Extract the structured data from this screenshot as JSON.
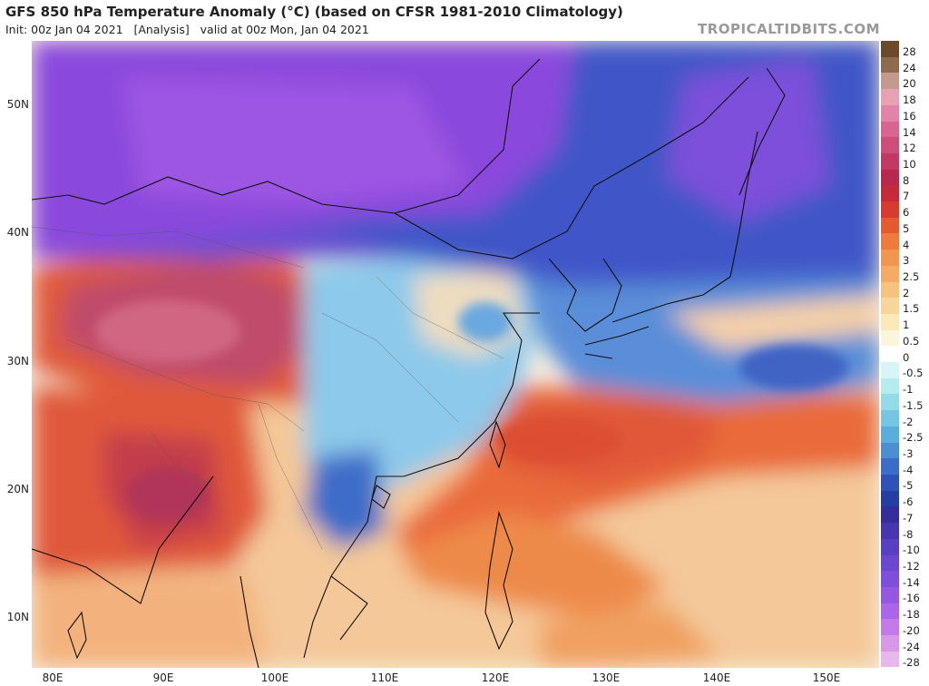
{
  "header": {
    "title": "GFS 850 hPa Temperature Anomaly (°C) (based on CFSR 1981-2010 Climatology)",
    "subtitle": "Init: 00z Jan 04 2021   [Analysis]   valid at 00z Mon, Jan 04 2021",
    "brand": "TROPICALTIDBITS.COM"
  },
  "map": {
    "lat_labels": [
      "50N",
      "40N",
      "30N",
      "20N",
      "10N"
    ],
    "lon_labels": [
      "80E",
      "90E",
      "100E",
      "110E",
      "120E",
      "130E",
      "140E",
      "150E"
    ],
    "colors": {
      "very_cold": "#7f45d8",
      "cold": "#4a5fd0",
      "cool": "#79b8e6",
      "neutral": "#f6f2ea",
      "warm": "#f3b27d",
      "hot": "#e05838",
      "very_hot": "#b83a5c",
      "coastline": "#111111"
    }
  },
  "colorbar": {
    "labels": [
      "28",
      "24",
      "20",
      "18",
      "16",
      "14",
      "12",
      "10",
      "8",
      "7",
      "6",
      "5",
      "4",
      "3",
      "2.5",
      "2",
      "1.5",
      "1",
      "0.5",
      "0",
      "-0.5",
      "-1",
      "-1.5",
      "-2",
      "-2.5",
      "-3",
      "-4",
      "-5",
      "-6",
      "-7",
      "-8",
      "-10",
      "-12",
      "-14",
      "-16",
      "-18",
      "-20",
      "-24",
      "-28"
    ],
    "colors": [
      "#6b4a2b",
      "#8e6b4d",
      "#c59a8e",
      "#e8a0b3",
      "#e283a9",
      "#d7658f",
      "#cc4e79",
      "#c23a62",
      "#b8274d",
      "#c52a3b",
      "#d93a30",
      "#e65a2f",
      "#ee7a3b",
      "#f29550",
      "#f5ab65",
      "#f7c17f",
      "#f8d69b",
      "#faeab9",
      "#fbf5dc",
      "#ffffff",
      "#d7f5f6",
      "#b5ecf0",
      "#94dbea",
      "#76c5e4",
      "#5aaedc",
      "#4a8ed3",
      "#3c6dc8",
      "#2f52b8",
      "#253ea3",
      "#352d9a",
      "#4736ae",
      "#5a3fc2",
      "#6c46d2",
      "#7f4fdc",
      "#9558e2",
      "#aa65e8",
      "#c27ae9",
      "#d898e9",
      "#e8b8ec"
    ]
  }
}
